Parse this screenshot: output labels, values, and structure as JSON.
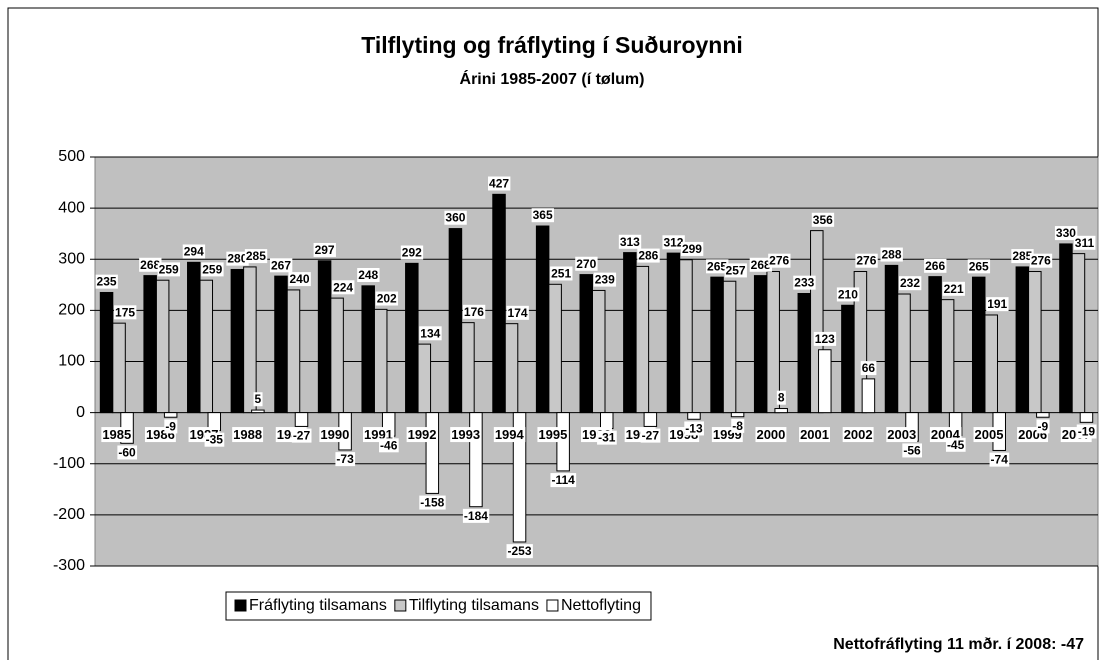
{
  "chart_data": {
    "type": "bar",
    "title": "Tilflyting og fráflyting í Suðuroynni",
    "subtitle": "Árini 1985-2007 (í tølum)",
    "footnote": "Nettofráflyting 11 mðr. í 2008: -47",
    "categories": [
      "1985",
      "1986",
      "1987",
      "1988",
      "1989",
      "1990",
      "1991",
      "1992",
      "1993",
      "1994",
      "1995",
      "1996",
      "1997",
      "1998",
      "1999",
      "2000",
      "2001",
      "2002",
      "2003",
      "2004",
      "2005",
      "2006",
      "2007"
    ],
    "series": [
      {
        "name": "Fráflyting tilsamans",
        "color": "#000000",
        "values": [
          235,
          268,
          294,
          280,
          267,
          297,
          248,
          292,
          360,
          427,
          365,
          270,
          313,
          312,
          265,
          268,
          233,
          210,
          288,
          266,
          265,
          285,
          330
        ]
      },
      {
        "name": "Tilflyting tilsamans",
        "color": "#c8c8c8",
        "values": [
          175,
          259,
          259,
          285,
          240,
          224,
          202,
          134,
          176,
          174,
          251,
          239,
          286,
          299,
          257,
          276,
          356,
          276,
          232,
          221,
          191,
          276,
          311
        ]
      },
      {
        "name": "Nettoflyting",
        "color": "#ffffff",
        "values": [
          -60,
          -9,
          -35,
          5,
          -27,
          -73,
          -46,
          -158,
          -184,
          -253,
          -114,
          -31,
          -27,
          -13,
          -8,
          8,
          123,
          66,
          -56,
          -45,
          -74,
          -9,
          -19
        ]
      }
    ],
    "ylim": [
      -300,
      500
    ],
    "yticks": [
      -300,
      -200,
      -100,
      0,
      100,
      200,
      300,
      400,
      500
    ],
    "grid": true,
    "legend_position": "bottom",
    "plot_background": "#c0c0c0"
  }
}
